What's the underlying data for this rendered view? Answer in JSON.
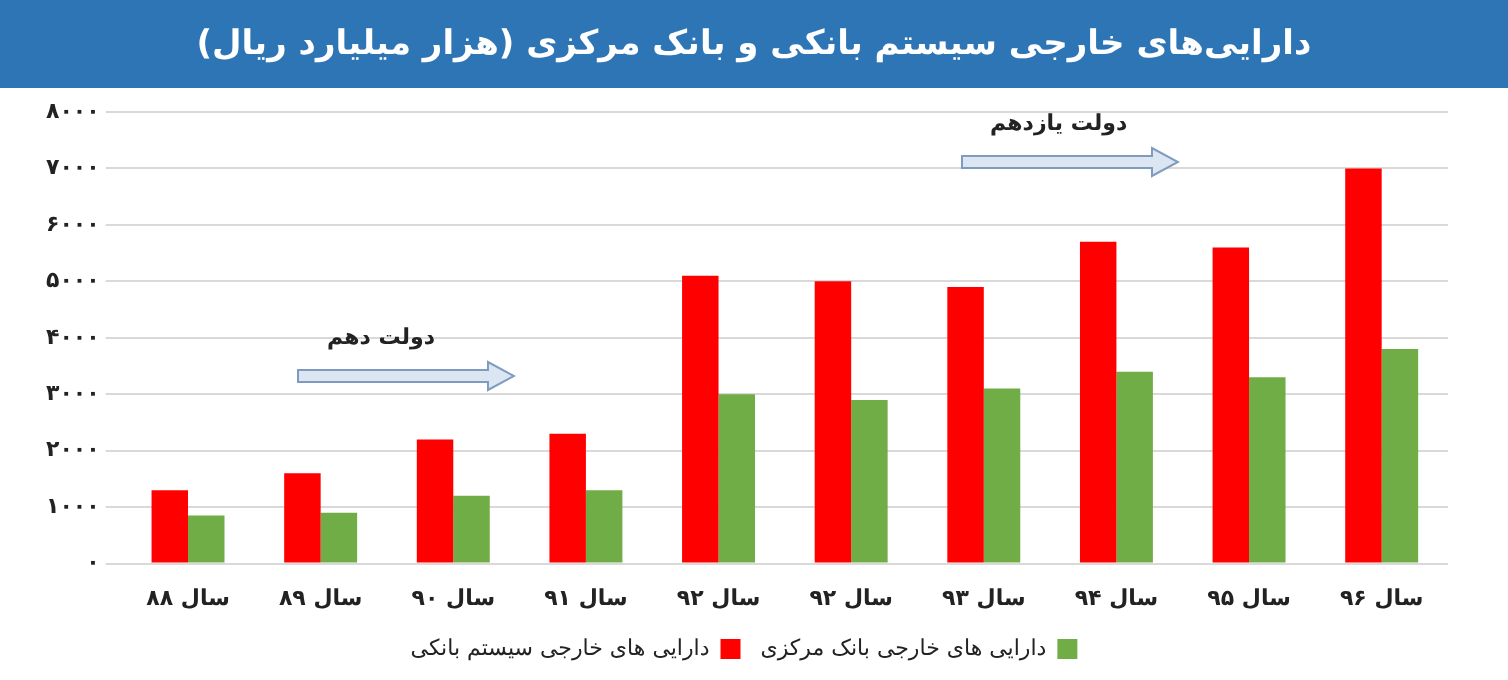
{
  "chart_data": {
    "type": "bar",
    "title": "دارایی‌های خارجی سیستم بانکی و بانک مرکزی (هزار میلیارد ریال)",
    "categories": [
      "سال ۸۸",
      "سال ۸۹",
      "سال ۹۰",
      "سال ۹۱",
      "سال ۹۲",
      "سال ۹۲",
      "سال ۹۳",
      "سال ۹۴",
      "سال ۹۵",
      "سال ۹۶"
    ],
    "series": [
      {
        "name": "دارایی های خارجی سیستم بانکی",
        "color": "#ff0000",
        "values": [
          1300,
          1600,
          2200,
          2300,
          5100,
          5000,
          4900,
          5700,
          5600,
          7000
        ]
      },
      {
        "name": "دارایی های خارجی بانک مرکزی",
        "color": "#70ad47",
        "values": [
          850,
          900,
          1200,
          1300,
          3000,
          2900,
          3100,
          3400,
          3300,
          3800
        ]
      }
    ],
    "ylim": [
      0,
      8000
    ],
    "yticks": [
      {
        "value": 0,
        "label": "۰"
      },
      {
        "value": 1000,
        "label": "۱۰۰۰"
      },
      {
        "value": 2000,
        "label": "۲۰۰۰"
      },
      {
        "value": 3000,
        "label": "۳۰۰۰"
      },
      {
        "value": 4000,
        "label": "۴۰۰۰"
      },
      {
        "value": 5000,
        "label": "۵۰۰۰"
      },
      {
        "value": 6000,
        "label": "۶۰۰۰"
      },
      {
        "value": 7000,
        "label": "۷۰۰۰"
      },
      {
        "value": 8000,
        "label": "۸۰۰۰"
      }
    ],
    "annotations": [
      "دولت دهم",
      "دولت یازدهم"
    ],
    "grid": "y",
    "legend": "bottom"
  }
}
